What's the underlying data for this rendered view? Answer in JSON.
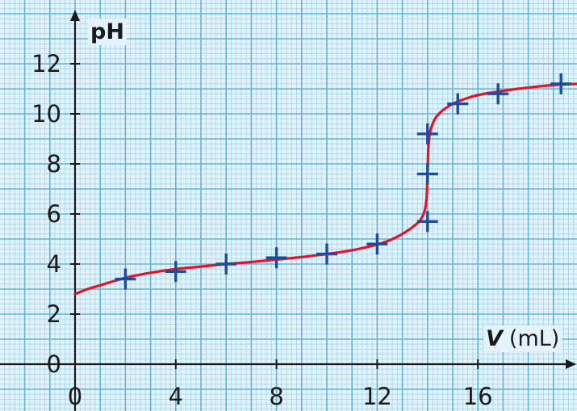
{
  "chart_data": {
    "type": "line",
    "xlabel_symbol": "V",
    "xlabel_unit": "(mL)",
    "ylabel": "pH",
    "xlim": [
      0,
      20
    ],
    "ylim": [
      0,
      14
    ],
    "x_ticks": [
      "0",
      "4",
      "8",
      "12",
      "16"
    ],
    "y_ticks": [
      "0",
      "2",
      "4",
      "6",
      "8",
      "10",
      "12"
    ],
    "grid": true,
    "markers": {
      "x": [
        2,
        4,
        6,
        8,
        10,
        12,
        14,
        14,
        14,
        15.2,
        16.8,
        19.3
      ],
      "y": [
        3.4,
        3.7,
        4.0,
        4.25,
        4.4,
        4.8,
        5.7,
        7.6,
        9.2,
        10.4,
        10.8,
        11.2
      ]
    },
    "curve": {
      "x": [
        0,
        0.5,
        1,
        2,
        3,
        4,
        5,
        6,
        7,
        8,
        9,
        10,
        11,
        12,
        12.5,
        13,
        13.5,
        13.8,
        13.95,
        14,
        14.05,
        14.2,
        14.5,
        15,
        15.5,
        16,
        17,
        18,
        19,
        20
      ],
      "y": [
        2.8,
        3.0,
        3.15,
        3.45,
        3.65,
        3.8,
        3.9,
        4.0,
        4.08,
        4.18,
        4.28,
        4.4,
        4.55,
        4.78,
        4.95,
        5.2,
        5.55,
        5.9,
        6.5,
        7.6,
        8.9,
        9.6,
        10.05,
        10.4,
        10.6,
        10.75,
        10.92,
        11.05,
        11.15,
        11.2
      ]
    },
    "colors": {
      "curve": "#e3132b",
      "marker": "#1a4e9c",
      "grid_major": "#63b4dd",
      "grid_minor": "#a9d7ef",
      "background": "#e2f3fc",
      "axis": "#1a1a1a"
    }
  }
}
